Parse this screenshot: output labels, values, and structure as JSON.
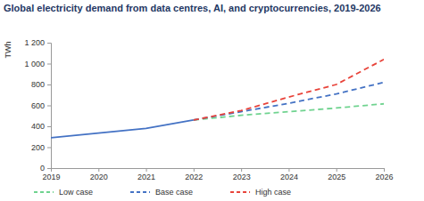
{
  "chart_data": {
    "type": "line",
    "title": "Global electricity demand from data centres, AI, and cryptocurrencies, 2019-2026",
    "y_label": "TWh",
    "x": [
      2019,
      2020,
      2021,
      2022,
      2023,
      2024,
      2025,
      2026
    ],
    "xlim": [
      2019,
      2026
    ],
    "xticks": [
      2019,
      2020,
      2021,
      2022,
      2023,
      2024,
      2025,
      2026
    ],
    "ylim": [
      0,
      1200
    ],
    "yticks": [
      0,
      200,
      400,
      600,
      800,
      {
        "value": 1000,
        "label": "1 000"
      },
      {
        "value": 1200,
        "label": "1 200"
      }
    ],
    "grid": false,
    "legend": "bottom",
    "series": [
      {
        "color": "#4472c4",
        "line_style": "solid",
        "values": [
          290,
          335,
          380,
          460,
          null,
          null,
          null,
          null
        ]
      },
      {
        "name": "Low case",
        "color": "#6fd38f",
        "line_style": "dashed",
        "values": [
          null,
          null,
          null,
          460,
          505,
          540,
          575,
          615
        ]
      },
      {
        "name": "Base case",
        "color": "#4472c4",
        "line_style": "dashed",
        "values": [
          null,
          null,
          null,
          460,
          540,
          620,
          710,
          820
        ]
      },
      {
        "name": "High case",
        "color": "#e8433a",
        "line_style": "dashed",
        "values": [
          null,
          null,
          null,
          460,
          550,
          680,
          800,
          1040
        ]
      }
    ]
  }
}
